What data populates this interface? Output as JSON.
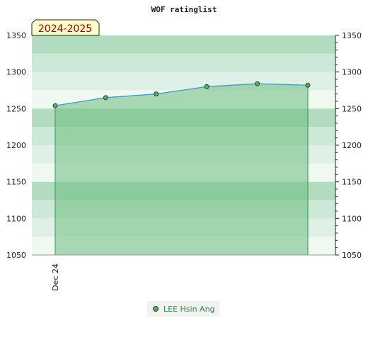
{
  "chart_data": {
    "type": "area",
    "title": "WOF ratinglist",
    "period_label": "2024-2025",
    "x_tick_labels": [
      "Dec 24"
    ],
    "ylim": [
      1050,
      1350
    ],
    "y_ticks": [
      1050,
      1100,
      1150,
      1200,
      1250,
      1300,
      1350
    ],
    "grid": false,
    "legend_position": "bottom-center",
    "series": [
      {
        "name": "LEE Hsin Ang",
        "color": "#5aa86a",
        "values": [
          1254,
          1265,
          1270,
          1280,
          1284,
          1282
        ]
      }
    ],
    "colors": {
      "band_dark": "#b2dcc0",
      "band_mid": "#cce8d6",
      "band_light": "#dff1e6",
      "band_lightest": "#f0f8f2",
      "fill": "#6dbd80",
      "line": "#4d9ad6",
      "point": "#5aa86a"
    }
  }
}
